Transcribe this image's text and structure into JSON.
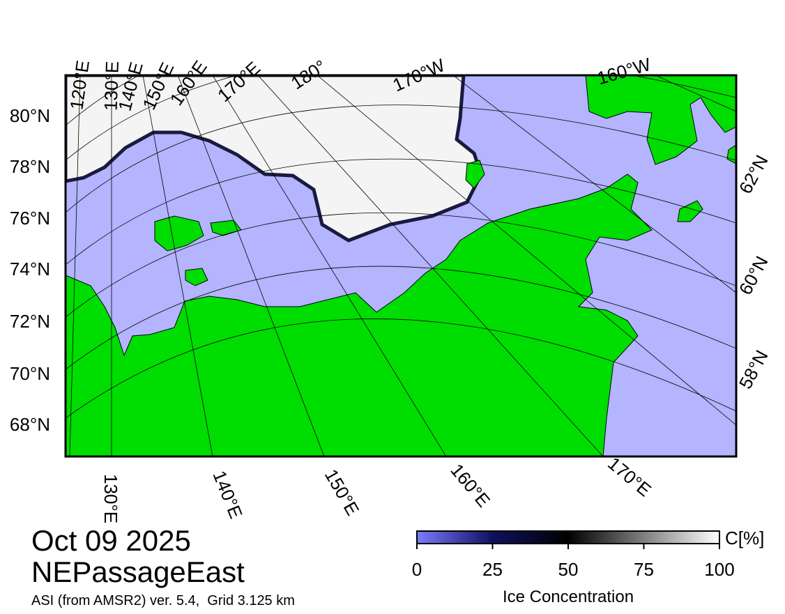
{
  "date": "Oct 09 2025",
  "region": "NEPassageEast",
  "source": "ASI (from AMSR2) ver. 5.4,  Grid 3.125 km",
  "left_lat_labels": [
    "80°N",
    "78°N",
    "76°N",
    "74°N",
    "72°N",
    "70°N",
    "68°N"
  ],
  "right_lat_labels": [
    "62°N",
    "60°N",
    "58°N"
  ],
  "top_lon_labels": [
    "120°E",
    "130°E",
    "140°E",
    "150°E",
    "160°E",
    "170°E",
    "180°",
    "170°W",
    "160°W"
  ],
  "bottom_lon_labels": [
    "130°E",
    "140°E",
    "150°E",
    "160°E",
    "170°E"
  ],
  "colorbar": {
    "label": "Ice Concentration",
    "unit": "C[%]",
    "range": [
      0,
      100
    ],
    "ticks": [
      0,
      25,
      50,
      75,
      100
    ]
  }
}
